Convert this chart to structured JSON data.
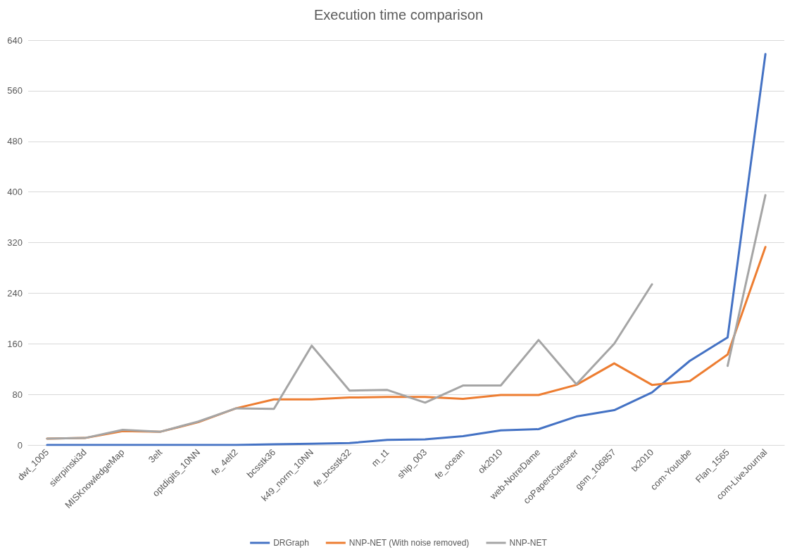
{
  "chart_data": {
    "type": "line",
    "title": "Execution time comparison",
    "categories": [
      "dwt_1005",
      "sierpinski3d",
      "MISKnowledgeMap",
      "3elt",
      "optdigits_10NN",
      "fe_4elt2",
      "bcsstk36",
      "k49_norm_10NN",
      "fe_bcsstk32",
      "m_t1",
      "ship_003",
      "fe_ocean",
      "ok2010",
      "web-NotreDame",
      "coPapersCiteseer",
      "gsm_106857",
      "tx2010",
      "com-Youtube",
      "Flan_1565",
      "com-LiveJournal"
    ],
    "series": [
      {
        "name": "DRGraph",
        "color": "#4472c4",
        "values": [
          0,
          0,
          0,
          0,
          0,
          0,
          1,
          2,
          3,
          8,
          9,
          14,
          23,
          25,
          45,
          55,
          83,
          133,
          170,
          618
        ]
      },
      {
        "name": "NNP-NET (With noise removed)",
        "color": "#ed7d31",
        "values": [
          10,
          11,
          22,
          21,
          36,
          58,
          72,
          72,
          75,
          76,
          76,
          73,
          79,
          79,
          95,
          129,
          95,
          101,
          143,
          313
        ]
      },
      {
        "name": "NNP-NET",
        "color": "#a5a5a5",
        "values": [
          10,
          11,
          24,
          21,
          37,
          58,
          57,
          157,
          86,
          87,
          67,
          94,
          94,
          166,
          96,
          160,
          254,
          null,
          125,
          395
        ]
      }
    ],
    "ylim": [
      0,
      640
    ],
    "yticks": [
      0,
      80,
      160,
      240,
      320,
      400,
      480,
      560,
      640
    ],
    "grid": "y",
    "legend": "bottom",
    "marker": "none",
    "line_style": "solid"
  }
}
